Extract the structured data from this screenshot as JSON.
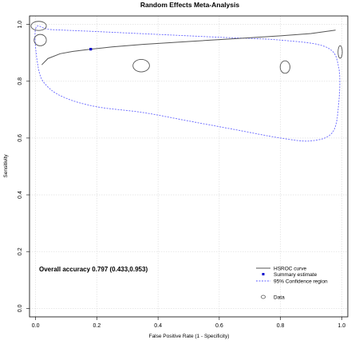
{
  "chart_data": {
    "type": "scatter",
    "title": "Random Effects Meta-Analysis",
    "xlabel": "False Positive Rate (1 - Specificity)",
    "ylabel": "Sensitivity",
    "xlim": [
      -0.02,
      1.02
    ],
    "ylim": [
      -0.03,
      1.03
    ],
    "xticks": [
      "0.0",
      "0.2",
      "0.4",
      "0.6",
      "0.8",
      "1.0"
    ],
    "yticks": [
      "0.0",
      "0.2",
      "0.4",
      "0.6",
      "0.8",
      "1.0"
    ],
    "grid": true,
    "annotation": "Overall accuracy 0.797 (0.433,0.953)",
    "hsroc_curve": {
      "name": "HSROC curve",
      "color": "#555555",
      "x": [
        0.02,
        0.04,
        0.08,
        0.12,
        0.18,
        0.25,
        0.35,
        0.5,
        0.65,
        0.8,
        0.9,
        0.98
      ],
      "y": [
        0.858,
        0.88,
        0.897,
        0.905,
        0.913,
        0.921,
        0.93,
        0.94,
        0.95,
        0.96,
        0.968,
        0.98
      ]
    },
    "summary_estimate": {
      "name": "Summary estimate",
      "color": "#0000cc",
      "x": 0.18,
      "y": 0.913
    },
    "confidence_region": {
      "name": "95% Confidence region",
      "color": "#6666ff",
      "x": [
        0.0,
        0.05,
        0.2,
        0.4,
        0.6,
        0.8,
        0.95,
        0.99,
        0.99,
        0.97,
        0.9,
        0.8,
        0.65,
        0.5,
        0.35,
        0.2,
        0.1,
        0.04,
        0.01,
        0.0
      ],
      "y": [
        0.985,
        0.982,
        0.975,
        0.965,
        0.955,
        0.945,
        0.92,
        0.85,
        0.72,
        0.62,
        0.59,
        0.6,
        0.63,
        0.66,
        0.69,
        0.71,
        0.74,
        0.78,
        0.84,
        0.985
      ]
    },
    "data": {
      "name": "Data",
      "color": "#555555",
      "studies": [
        {
          "x": 0.01,
          "y": 0.995,
          "rx": 0.025,
          "ry": 0.016
        },
        {
          "x": 0.015,
          "y": 0.945,
          "rx": 0.02,
          "ry": 0.02
        },
        {
          "x": 0.345,
          "y": 0.855,
          "rx": 0.027,
          "ry": 0.022
        },
        {
          "x": 0.815,
          "y": 0.85,
          "rx": 0.016,
          "ry": 0.022
        },
        {
          "x": 0.995,
          "y": 0.903,
          "rx": 0.007,
          "ry": 0.022
        }
      ]
    },
    "legend": {
      "position": "bottom-right",
      "entries": [
        "HSROC curve",
        "Summary estimate",
        "95% Confidence region",
        "Data"
      ]
    }
  }
}
